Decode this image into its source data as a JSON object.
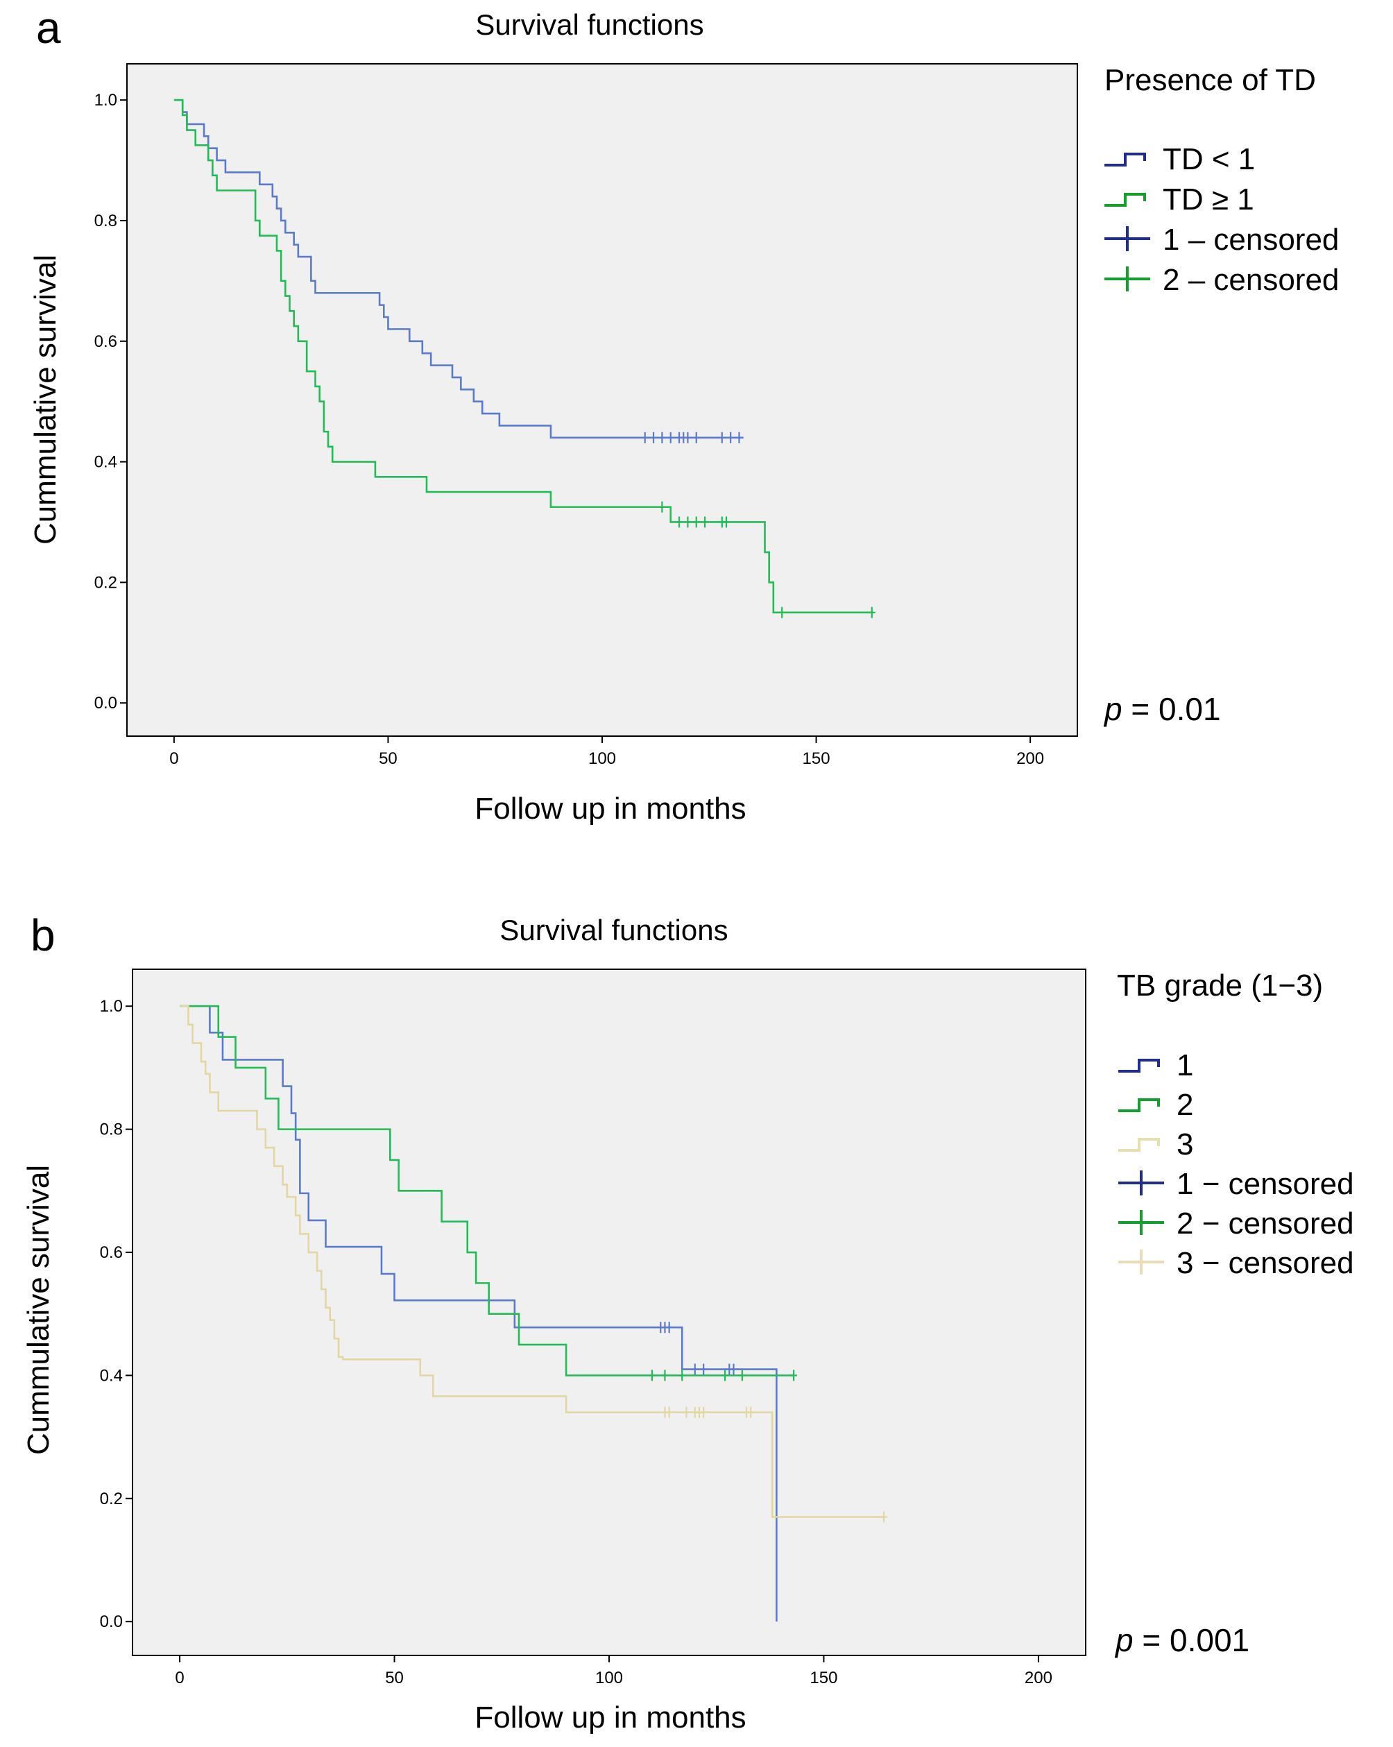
{
  "chart_data": [
    {
      "type": "line",
      "panel": "a",
      "title": "Survival functions",
      "xlabel": "Follow up in months",
      "ylabel": "Cummulative survival",
      "xlim": [
        -11,
        211
      ],
      "ylim": [
        -0.055,
        1.06
      ],
      "xticks": [
        0,
        50,
        100,
        150,
        200
      ],
      "yticks": [
        "0.0",
        "0.2",
        "0.4",
        "0.6",
        "0.8",
        "1.0"
      ],
      "legend_title": "Presence of TD",
      "legend": [
        {
          "label": "TD < 1",
          "kind": "step",
          "color": "#1f2d8c"
        },
        {
          "label": "TD ≥ 1",
          "kind": "step",
          "color": "#12a12d"
        },
        {
          "label": "1 – censored",
          "kind": "cross",
          "color": "#1f2d8c"
        },
        {
          "label": "2 – censored",
          "kind": "cross",
          "color": "#12a12d"
        }
      ],
      "p_label": "p",
      "p_value": " = 0.01",
      "series": [
        {
          "name": "TD < 1",
          "color": "#5b7ac9",
          "steps": [
            [
              0,
              1.0
            ],
            [
              2,
              0.98
            ],
            [
              3,
              0.96
            ],
            [
              7,
              0.94
            ],
            [
              8,
              0.92
            ],
            [
              10,
              0.9
            ],
            [
              12,
              0.88
            ],
            [
              20,
              0.86
            ],
            [
              23,
              0.84
            ],
            [
              24,
              0.82
            ],
            [
              25,
              0.8
            ],
            [
              26,
              0.78
            ],
            [
              28,
              0.76
            ],
            [
              29,
              0.74
            ],
            [
              32,
              0.7
            ],
            [
              33,
              0.68
            ],
            [
              48,
              0.66
            ],
            [
              49,
              0.64
            ],
            [
              50,
              0.62
            ],
            [
              55,
              0.6
            ],
            [
              58,
              0.58
            ],
            [
              60,
              0.56
            ],
            [
              65,
              0.54
            ],
            [
              67,
              0.52
            ],
            [
              70,
              0.5
            ],
            [
              72,
              0.48
            ],
            [
              76,
              0.46
            ],
            [
              88,
              0.44
            ],
            [
              133,
              0.44
            ]
          ],
          "censored": [
            110,
            112,
            114,
            116,
            118,
            119,
            120,
            122,
            128,
            130,
            132
          ]
        },
        {
          "name": "TD ≥ 1",
          "color": "#22bb55",
          "steps": [
            [
              0,
              1.0
            ],
            [
              2,
              0.975
            ],
            [
              3,
              0.95
            ],
            [
              5,
              0.925
            ],
            [
              8,
              0.9
            ],
            [
              9,
              0.875
            ],
            [
              10,
              0.85
            ],
            [
              19,
              0.8
            ],
            [
              20,
              0.775
            ],
            [
              24,
              0.75
            ],
            [
              25,
              0.7
            ],
            [
              26,
              0.675
            ],
            [
              27,
              0.65
            ],
            [
              28,
              0.625
            ],
            [
              29,
              0.6
            ],
            [
              31,
              0.55
            ],
            [
              33,
              0.525
            ],
            [
              34,
              0.5
            ],
            [
              35,
              0.45
            ],
            [
              36,
              0.425
            ],
            [
              37,
              0.4
            ],
            [
              47,
              0.375
            ],
            [
              59,
              0.35
            ],
            [
              88,
              0.325
            ],
            [
              116,
              0.3
            ],
            [
              138,
              0.25
            ],
            [
              139,
              0.2
            ],
            [
              140,
              0.15
            ],
            [
              163,
              0.15
            ]
          ],
          "censored": [
            114,
            118,
            120,
            122,
            124,
            128,
            129,
            142,
            163
          ]
        }
      ]
    },
    {
      "type": "line",
      "panel": "b",
      "title": "Survival functions",
      "xlabel": "Follow up in months",
      "ylabel": "Cummulative survival",
      "xlim": [
        -11,
        211
      ],
      "ylim": [
        -0.055,
        1.06
      ],
      "xticks": [
        0,
        50,
        100,
        150,
        200
      ],
      "yticks": [
        "0.0",
        "0.2",
        "0.4",
        "0.6",
        "0.8",
        "1.0"
      ],
      "legend_title": "TB grade (1−3)",
      "legend": [
        {
          "label": "1",
          "kind": "step",
          "color": "#1f2d8c"
        },
        {
          "label": "2",
          "kind": "step",
          "color": "#12a12d"
        },
        {
          "label": "3",
          "kind": "step",
          "color": "#e7dfb0"
        },
        {
          "label": "1 − censored",
          "kind": "cross",
          "color": "#1f2d8c"
        },
        {
          "label": "2 − censored",
          "kind": "cross",
          "color": "#12a12d"
        },
        {
          "label": "3 − censored",
          "kind": "cross",
          "color": "#ecdcb5"
        }
      ],
      "p_label": "p",
      "p_value": " = 0.001",
      "series": [
        {
          "name": "1",
          "color": "#5b7ac9",
          "steps": [
            [
              0,
              1.0
            ],
            [
              7,
              0.957
            ],
            [
              10,
              0.913
            ],
            [
              24,
              0.87
            ],
            [
              26,
              0.826
            ],
            [
              27,
              0.783
            ],
            [
              28,
              0.696
            ],
            [
              30,
              0.652
            ],
            [
              34,
              0.609
            ],
            [
              47,
              0.565
            ],
            [
              50,
              0.522
            ],
            [
              78,
              0.478
            ],
            [
              117,
              0.41
            ],
            [
              139,
              0.0
            ]
          ],
          "censored": [
            112,
            113,
            114,
            120,
            122,
            128,
            129
          ]
        },
        {
          "name": "2",
          "color": "#22bb55",
          "steps": [
            [
              0,
              1.0
            ],
            [
              9,
              0.95
            ],
            [
              13,
              0.9
            ],
            [
              20,
              0.85
            ],
            [
              23,
              0.8
            ],
            [
              49,
              0.75
            ],
            [
              51,
              0.7
            ],
            [
              61,
              0.65
            ],
            [
              67,
              0.6
            ],
            [
              69,
              0.55
            ],
            [
              72,
              0.5
            ],
            [
              79,
              0.45
            ],
            [
              90,
              0.4
            ],
            [
              143,
              0.4
            ]
          ],
          "censored": [
            110,
            113,
            117,
            127,
            131,
            143
          ]
        },
        {
          "name": "3",
          "color": "#e2d6a4",
          "steps": [
            [
              0,
              1.0
            ],
            [
              2,
              0.97
            ],
            [
              3,
              0.94
            ],
            [
              5,
              0.91
            ],
            [
              6,
              0.89
            ],
            [
              7,
              0.86
            ],
            [
              9,
              0.83
            ],
            [
              18,
              0.8
            ],
            [
              20,
              0.77
            ],
            [
              22,
              0.74
            ],
            [
              24,
              0.71
            ],
            [
              25,
              0.69
            ],
            [
              27,
              0.66
            ],
            [
              28,
              0.63
            ],
            [
              30,
              0.6
            ],
            [
              32,
              0.57
            ],
            [
              33,
              0.54
            ],
            [
              34,
              0.51
            ],
            [
              35,
              0.49
            ],
            [
              36,
              0.46
            ],
            [
              37,
              0.43
            ],
            [
              38,
              0.426
            ],
            [
              56,
              0.4
            ],
            [
              59,
              0.366
            ],
            [
              90,
              0.34
            ],
            [
              138,
              0.17
            ],
            [
              164,
              0.17
            ]
          ],
          "censored": [
            113,
            114,
            118,
            120,
            121,
            122,
            132,
            133,
            164
          ]
        }
      ]
    }
  ]
}
